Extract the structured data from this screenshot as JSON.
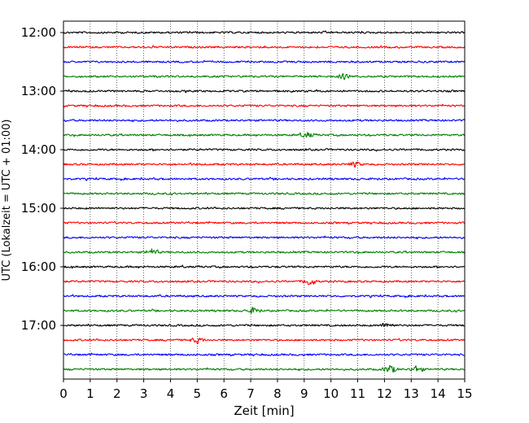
{
  "chart_data": {
    "type": "line",
    "title": "",
    "xlabel": "Zeit  [min]",
    "ylabel": "UTC (Lokalzeit = UTC + 01:00)",
    "xlim": [
      0,
      15
    ],
    "x_ticks": [
      0,
      1,
      2,
      3,
      4,
      5,
      6,
      7,
      8,
      9,
      10,
      11,
      12,
      13,
      14,
      15
    ],
    "x_tick_labels": [
      "0",
      "1",
      "2",
      "3",
      "4",
      "5",
      "6",
      "7",
      "8",
      "9",
      "10",
      "11",
      "12",
      "13",
      "14",
      "15"
    ],
    "y_tick_labels": [
      "12:00",
      "13:00",
      "14:00",
      "15:00",
      "16:00",
      "17:00"
    ],
    "y_tick_rows": [
      0,
      4,
      8,
      12,
      16,
      20
    ],
    "grid": "vertical-dotted",
    "legend": "none",
    "trace_interval_min": 15,
    "trace_colors": [
      "#000000",
      "#ff0000",
      "#0000ff",
      "#008000"
    ],
    "traces": [
      {
        "start": "12:00",
        "color": "#000000"
      },
      {
        "start": "12:15",
        "color": "#ff0000"
      },
      {
        "start": "12:30",
        "color": "#0000ff"
      },
      {
        "start": "12:45",
        "color": "#008000"
      },
      {
        "start": "13:00",
        "color": "#000000"
      },
      {
        "start": "13:15",
        "color": "#ff0000"
      },
      {
        "start": "13:30",
        "color": "#0000ff"
      },
      {
        "start": "13:45",
        "color": "#008000"
      },
      {
        "start": "14:00",
        "color": "#000000"
      },
      {
        "start": "14:15",
        "color": "#ff0000"
      },
      {
        "start": "14:30",
        "color": "#0000ff"
      },
      {
        "start": "14:45",
        "color": "#008000"
      },
      {
        "start": "15:00",
        "color": "#000000"
      },
      {
        "start": "15:15",
        "color": "#ff0000"
      },
      {
        "start": "15:30",
        "color": "#0000ff"
      },
      {
        "start": "15:45",
        "color": "#008000"
      },
      {
        "start": "16:00",
        "color": "#000000"
      },
      {
        "start": "16:15",
        "color": "#ff0000"
      },
      {
        "start": "16:30",
        "color": "#0000ff"
      },
      {
        "start": "16:45",
        "color": "#008000"
      },
      {
        "start": "17:00",
        "color": "#000000"
      },
      {
        "start": "17:15",
        "color": "#ff0000"
      },
      {
        "start": "17:30",
        "color": "#0000ff"
      },
      {
        "start": "17:45",
        "color": "#008000"
      }
    ],
    "events": [
      {
        "row": 15,
        "x": 3.3,
        "amp": 1.8
      },
      {
        "row": 17,
        "x": 9.2,
        "amp": 2.2
      },
      {
        "row": 19,
        "x": 7.1,
        "amp": 1.8
      },
      {
        "row": 20,
        "x": 12.1,
        "amp": 1.6
      },
      {
        "row": 21,
        "x": 5.0,
        "amp": 1.6
      },
      {
        "row": 23,
        "x": 12.2,
        "amp": 2.6
      },
      {
        "row": 23,
        "x": 13.2,
        "amp": 2.0
      },
      {
        "row": 7,
        "x": 9.1,
        "amp": 1.6
      },
      {
        "row": 3,
        "x": 10.5,
        "amp": 1.5
      },
      {
        "row": 9,
        "x": 10.9,
        "amp": 1.4
      }
    ]
  }
}
